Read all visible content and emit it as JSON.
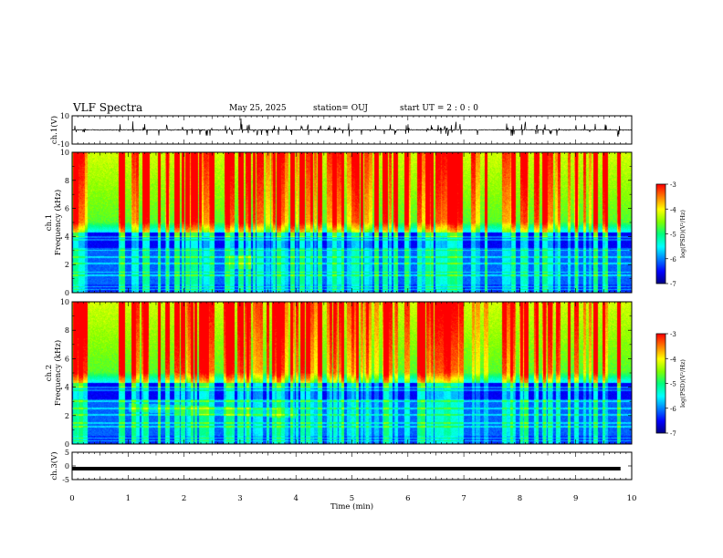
{
  "header": {
    "title": "VLF Spectra",
    "date": "May 25, 2025",
    "station": "station= OUJ",
    "start": "start  UT =  2 : 0  : 0"
  },
  "colors": {
    "colormap": [
      "#000080",
      "#0000ff",
      "#0080ff",
      "#00ffff",
      "#00ff80",
      "#80ff00",
      "#ffff00",
      "#ff8000",
      "#ff0000",
      "#ffffff"
    ],
    "trace": "#000000"
  },
  "chart_data": [
    {
      "type": "line",
      "panel": "ch1-waveform",
      "ylabel": "ch.1(V)",
      "ylim": [
        -10,
        10
      ],
      "yticks": [
        "10",
        "-10"
      ],
      "xlim": [
        0,
        10
      ],
      "description": "noisy waveform centered near 0 V with sferic spikes"
    },
    {
      "type": "heatmap",
      "panel": "ch1-spectrogram",
      "ylabel": "ch.1\nFrequency (kHz)",
      "ylim": [
        0,
        10
      ],
      "yticks": [
        "0",
        "2",
        "4",
        "6",
        "8",
        "10"
      ],
      "xlim": [
        0,
        10
      ],
      "colorbar": {
        "label": "log(PSD)(V²/Hz)",
        "ticks": [
          "-3",
          "-4",
          "-5",
          "-6",
          "-7"
        ],
        "range": [
          -7,
          -3
        ]
      }
    },
    {
      "type": "heatmap",
      "panel": "ch2-spectrogram",
      "ylabel": "ch.2\nFrequency (kHz)",
      "ylim": [
        0,
        10
      ],
      "yticks": [
        "0",
        "2",
        "4",
        "6",
        "8",
        "10"
      ],
      "xlim": [
        0,
        10
      ],
      "colorbar": {
        "label": "log(PSD)(V²/Hz)",
        "ticks": [
          "-3",
          "-4",
          "-5",
          "-6",
          "-7"
        ],
        "range": [
          -7,
          -3
        ]
      }
    },
    {
      "type": "line",
      "panel": "ch3-waveform",
      "ylabel": "ch.3(V)",
      "ylim": [
        -5,
        5
      ],
      "yticks": [
        "5",
        "0",
        "-5"
      ],
      "xlim": [
        0,
        10
      ],
      "series": [
        {
          "x": [
            0,
            9.8
          ],
          "y": [
            -1,
            -1
          ]
        }
      ]
    }
  ],
  "xaxis": {
    "label": "Time (min)",
    "ticks": [
      "0",
      "1",
      "2",
      "3",
      "4",
      "5",
      "6",
      "7",
      "8",
      "9",
      "10"
    ],
    "range": [
      0,
      10
    ]
  }
}
